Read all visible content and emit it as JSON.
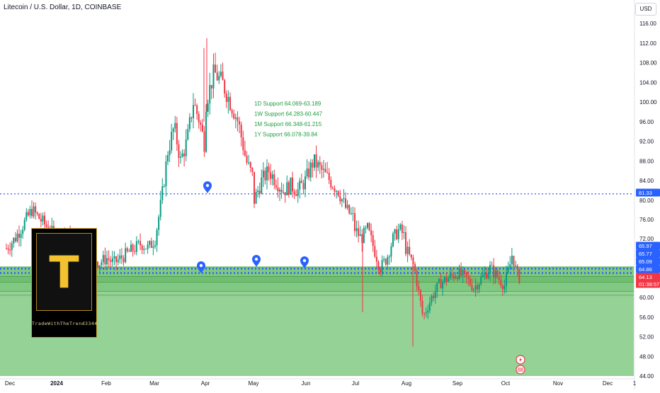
{
  "header": {
    "title": "Litecoin / U.S. Dollar, 1D, COINBASE",
    "currency": "USD"
  },
  "logo": {
    "letter": "T",
    "text": "TradeWithTheTrend3344"
  },
  "annotations": [
    "1D Support 64.069-63.189",
    "1W Support 64.283-60.447",
    "1M Support 66.348-61.215",
    "1Y Support 66.078-39.84"
  ],
  "price_labels": [
    {
      "value": "81.33",
      "color": "#2962ff"
    },
    {
      "value": "65.97",
      "color": "#2962ff"
    },
    {
      "value": "65.77",
      "color": "#2962ff"
    },
    {
      "value": "65.09",
      "color": "#2962ff"
    },
    {
      "value": "64.86",
      "color": "#2962ff"
    },
    {
      "value": "64.13",
      "color": "#f23645"
    },
    {
      "value": "01:38:57",
      "color": "#f23645"
    }
  ],
  "colors": {
    "up": "#089981",
    "down": "#f23645",
    "zone_fill": "#8fd08f",
    "level_line": "#2962ff",
    "annotation": "#1e9e3e"
  },
  "chart_data": {
    "type": "candlestick",
    "title": "Litecoin / U.S. Dollar, 1D, COINBASE",
    "y_axis": {
      "ticks": [
        116,
        112,
        108,
        104,
        100,
        96,
        92,
        88,
        84,
        80,
        76,
        72,
        60,
        56,
        52,
        48,
        44
      ],
      "range": [
        44,
        116
      ]
    },
    "x_axis": {
      "ticks": [
        "Dec",
        "2024",
        "Feb",
        "Mar",
        "Apr",
        "May",
        "Jun",
        "Jul",
        "Aug",
        "Sep",
        "Oct",
        "Nov",
        "Dec",
        "1"
      ]
    },
    "levels": [
      81.33,
      65.97,
      65.77,
      65.09,
      64.86
    ],
    "current_price": 64.13,
    "support_zones": [
      {
        "name": "1D Support",
        "range": [
          63.189,
          64.069
        ]
      },
      {
        "name": "1W Support",
        "range": [
          60.447,
          64.283
        ]
      },
      {
        "name": "1M Support",
        "range": [
          61.215,
          66.348
        ]
      },
      {
        "name": "1Y Support",
        "range": [
          39.84,
          66.078
        ]
      }
    ],
    "series": [
      {
        "month": "Dec",
        "path": [
          70,
          72,
          75,
          78,
          76,
          74,
          72
        ]
      },
      {
        "month": "2024",
        "path": [
          72,
          73,
          71,
          70,
          69,
          67,
          68
        ]
      },
      {
        "month": "Feb",
        "path": [
          68,
          67,
          68,
          69,
          70,
          71,
          70,
          72
        ]
      },
      {
        "month": "Mar",
        "path": [
          72,
          80,
          90,
          95,
          88,
          92,
          100,
          96,
          90
        ]
      },
      {
        "month": "Apr",
        "path": [
          100,
          106,
          104,
          100,
          96,
          88,
          84
        ]
      },
      {
        "month": "May",
        "path": [
          80,
          84,
          86,
          84,
          82,
          83,
          82,
          84
        ]
      },
      {
        "month": "Jun",
        "path": [
          84,
          88,
          86,
          84,
          82,
          78,
          76
        ]
      },
      {
        "month": "Jul",
        "path": [
          74,
          72,
          74,
          70,
          66,
          68,
          72,
          74,
          72
        ]
      },
      {
        "month": "Aug",
        "path": [
          70,
          66,
          56,
          60,
          63,
          64,
          65
        ]
      },
      {
        "month": "Sep",
        "path": [
          65,
          64,
          62,
          64,
          66,
          64,
          62
        ]
      },
      {
        "month": "Oct",
        "path": [
          64,
          66,
          69,
          66,
          64,
          64.13
        ]
      }
    ]
  }
}
